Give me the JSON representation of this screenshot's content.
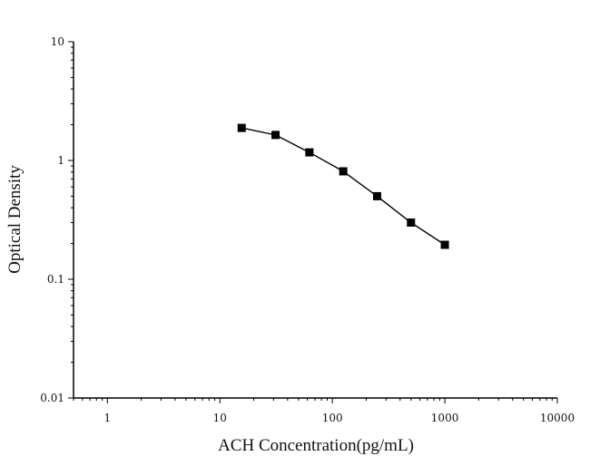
{
  "chart_data": {
    "type": "line",
    "title": "",
    "xlabel": "ACH Concentration(pg/mL)",
    "ylabel": "Optical Density",
    "xscale": "log",
    "yscale": "log",
    "xlim": [
      0.5,
      10000
    ],
    "ylim": [
      0.01,
      10
    ],
    "xticks": [
      1,
      10,
      100,
      1000,
      10000
    ],
    "xtick_labels": [
      "1",
      "10",
      "100",
      "1000",
      "10000"
    ],
    "yticks": [
      0.01,
      0.1,
      1,
      10
    ],
    "ytick_labels": [
      "0.01",
      "0.1",
      "1",
      "10"
    ],
    "grid": false,
    "marker": "square",
    "color": "#000000",
    "series": [
      {
        "x": [
          15.625,
          31.25,
          62.5,
          125,
          250,
          500,
          1000
        ],
        "y": [
          1.88,
          1.64,
          1.17,
          0.81,
          0.5,
          0.3,
          0.195
        ]
      }
    ]
  }
}
